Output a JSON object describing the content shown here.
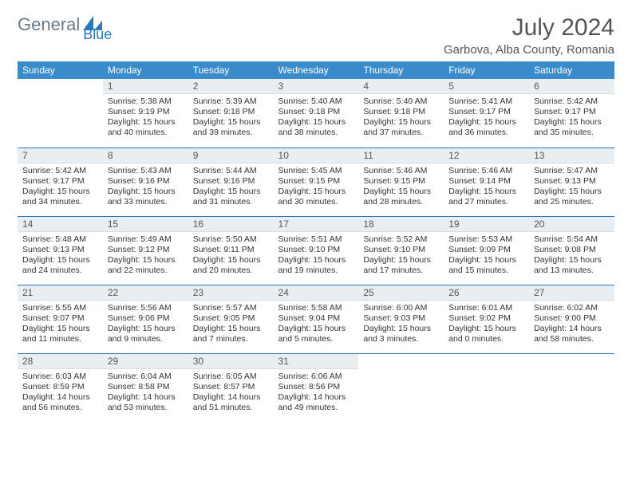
{
  "brand": {
    "part1": "General",
    "part2": "Blue"
  },
  "title": "July 2024",
  "location": "Garbova, Alba County, Romania",
  "colors": {
    "header_bg": "#3a8bc9",
    "daynum_bg": "#e9eef2",
    "week_border": "#2a78b8",
    "text": "#333333"
  },
  "weekdays": [
    "Sunday",
    "Monday",
    "Tuesday",
    "Wednesday",
    "Thursday",
    "Friday",
    "Saturday"
  ],
  "weeks": [
    [
      null,
      {
        "n": "1",
        "sr": "5:38 AM",
        "ss": "9:19 PM",
        "dl": "15 hours and 40 minutes."
      },
      {
        "n": "2",
        "sr": "5:39 AM",
        "ss": "9:18 PM",
        "dl": "15 hours and 39 minutes."
      },
      {
        "n": "3",
        "sr": "5:40 AM",
        "ss": "9:18 PM",
        "dl": "15 hours and 38 minutes."
      },
      {
        "n": "4",
        "sr": "5:40 AM",
        "ss": "9:18 PM",
        "dl": "15 hours and 37 minutes."
      },
      {
        "n": "5",
        "sr": "5:41 AM",
        "ss": "9:17 PM",
        "dl": "15 hours and 36 minutes."
      },
      {
        "n": "6",
        "sr": "5:42 AM",
        "ss": "9:17 PM",
        "dl": "15 hours and 35 minutes."
      }
    ],
    [
      {
        "n": "7",
        "sr": "5:42 AM",
        "ss": "9:17 PM",
        "dl": "15 hours and 34 minutes."
      },
      {
        "n": "8",
        "sr": "5:43 AM",
        "ss": "9:16 PM",
        "dl": "15 hours and 33 minutes."
      },
      {
        "n": "9",
        "sr": "5:44 AM",
        "ss": "9:16 PM",
        "dl": "15 hours and 31 minutes."
      },
      {
        "n": "10",
        "sr": "5:45 AM",
        "ss": "9:15 PM",
        "dl": "15 hours and 30 minutes."
      },
      {
        "n": "11",
        "sr": "5:46 AM",
        "ss": "9:15 PM",
        "dl": "15 hours and 28 minutes."
      },
      {
        "n": "12",
        "sr": "5:46 AM",
        "ss": "9:14 PM",
        "dl": "15 hours and 27 minutes."
      },
      {
        "n": "13",
        "sr": "5:47 AM",
        "ss": "9:13 PM",
        "dl": "15 hours and 25 minutes."
      }
    ],
    [
      {
        "n": "14",
        "sr": "5:48 AM",
        "ss": "9:13 PM",
        "dl": "15 hours and 24 minutes."
      },
      {
        "n": "15",
        "sr": "5:49 AM",
        "ss": "9:12 PM",
        "dl": "15 hours and 22 minutes."
      },
      {
        "n": "16",
        "sr": "5:50 AM",
        "ss": "9:11 PM",
        "dl": "15 hours and 20 minutes."
      },
      {
        "n": "17",
        "sr": "5:51 AM",
        "ss": "9:10 PM",
        "dl": "15 hours and 19 minutes."
      },
      {
        "n": "18",
        "sr": "5:52 AM",
        "ss": "9:10 PM",
        "dl": "15 hours and 17 minutes."
      },
      {
        "n": "19",
        "sr": "5:53 AM",
        "ss": "9:09 PM",
        "dl": "15 hours and 15 minutes."
      },
      {
        "n": "20",
        "sr": "5:54 AM",
        "ss": "9:08 PM",
        "dl": "15 hours and 13 minutes."
      }
    ],
    [
      {
        "n": "21",
        "sr": "5:55 AM",
        "ss": "9:07 PM",
        "dl": "15 hours and 11 minutes."
      },
      {
        "n": "22",
        "sr": "5:56 AM",
        "ss": "9:06 PM",
        "dl": "15 hours and 9 minutes."
      },
      {
        "n": "23",
        "sr": "5:57 AM",
        "ss": "9:05 PM",
        "dl": "15 hours and 7 minutes."
      },
      {
        "n": "24",
        "sr": "5:58 AM",
        "ss": "9:04 PM",
        "dl": "15 hours and 5 minutes."
      },
      {
        "n": "25",
        "sr": "6:00 AM",
        "ss": "9:03 PM",
        "dl": "15 hours and 3 minutes."
      },
      {
        "n": "26",
        "sr": "6:01 AM",
        "ss": "9:02 PM",
        "dl": "15 hours and 0 minutes."
      },
      {
        "n": "27",
        "sr": "6:02 AM",
        "ss": "9:00 PM",
        "dl": "14 hours and 58 minutes."
      }
    ],
    [
      {
        "n": "28",
        "sr": "6:03 AM",
        "ss": "8:59 PM",
        "dl": "14 hours and 56 minutes."
      },
      {
        "n": "29",
        "sr": "6:04 AM",
        "ss": "8:58 PM",
        "dl": "14 hours and 53 minutes."
      },
      {
        "n": "30",
        "sr": "6:05 AM",
        "ss": "8:57 PM",
        "dl": "14 hours and 51 minutes."
      },
      {
        "n": "31",
        "sr": "6:06 AM",
        "ss": "8:56 PM",
        "dl": "14 hours and 49 minutes."
      },
      null,
      null,
      null
    ]
  ],
  "labels": {
    "sunrise": "Sunrise:",
    "sunset": "Sunset:",
    "daylight": "Daylight:"
  }
}
